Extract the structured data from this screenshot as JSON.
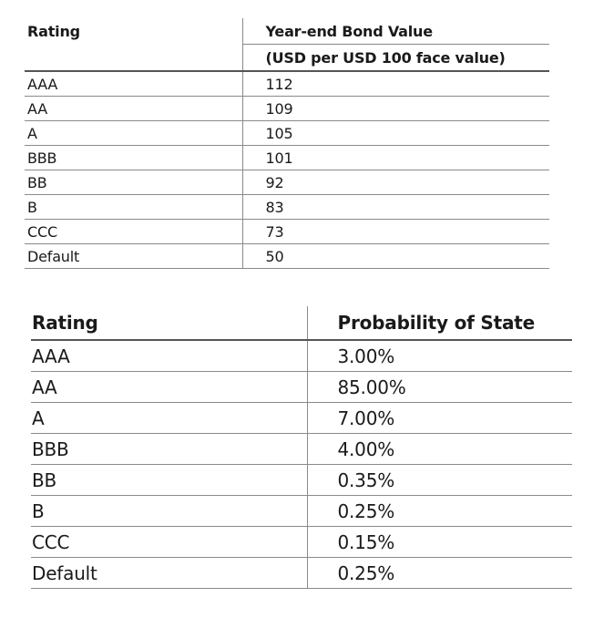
{
  "bond_value_table": {
    "header_rating": "Rating",
    "header_value_line1": "Year-end Bond Value",
    "header_value_line2": "(USD per USD 100 face value)",
    "rows": [
      {
        "rating": "AAA",
        "value": "112"
      },
      {
        "rating": "AA",
        "value": "109"
      },
      {
        "rating": "A",
        "value": "105"
      },
      {
        "rating": "BBB",
        "value": "101"
      },
      {
        "rating": "BB",
        "value": "92"
      },
      {
        "rating": "B",
        "value": "83"
      },
      {
        "rating": "CCC",
        "value": "73"
      },
      {
        "rating": "Default",
        "value": "50"
      }
    ]
  },
  "probability_table": {
    "header_rating": "Rating",
    "header_probability": "Probability of State",
    "rows": [
      {
        "rating": "AAA",
        "probability": "3.00%"
      },
      {
        "rating": "AA",
        "probability": "85.00%"
      },
      {
        "rating": "A",
        "probability": "7.00%"
      },
      {
        "rating": "BBB",
        "probability": "4.00%"
      },
      {
        "rating": "BB",
        "probability": "0.35%"
      },
      {
        "rating": "B",
        "probability": "0.25%"
      },
      {
        "rating": "CCC",
        "probability": "0.15%"
      },
      {
        "rating": "Default",
        "probability": "0.25%"
      }
    ]
  }
}
